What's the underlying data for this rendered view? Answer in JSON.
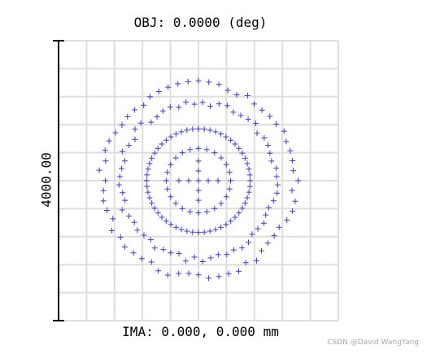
{
  "chart_data": {
    "type": "scatter",
    "title": "OBJ: 0.0000 (deg)",
    "xlabel": "IMA: 0.000, 0.000 mm",
    "scale_bar_label": "4000.00",
    "grid": true,
    "grid_divisions": 10,
    "marker": "plus",
    "series_color": "#3b3bdc",
    "clusters": [
      {
        "count": 4,
        "radius": 0.07,
        "start_angle_deg": 0
      },
      {
        "count": 56,
        "radius": 0.37,
        "start_angle_deg": 0
      },
      {
        "count": 60,
        "radius": 0.56,
        "start_angle_deg": 3
      },
      {
        "count": 60,
        "radius": 0.69,
        "start_angle_deg": 0
      },
      {
        "count": 24,
        "radius": 0.23,
        "start_angle_deg": 0,
        "offset": 0.0
      }
    ]
  },
  "watermark": "CSDN @David WangYang"
}
